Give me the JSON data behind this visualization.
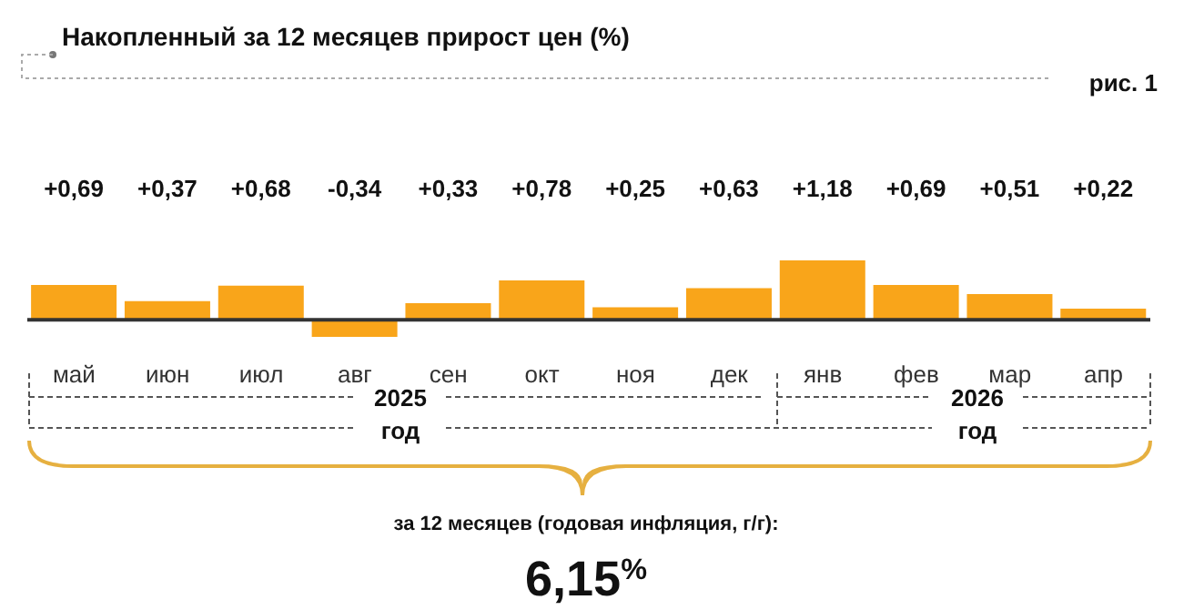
{
  "chart_data": {
    "type": "bar",
    "title": "Накопленный за 12 месяцев прирост цен (%)",
    "categories": [
      "май",
      "июн",
      "июл",
      "авг",
      "сен",
      "окт",
      "ноя",
      "дек",
      "янв",
      "фев",
      "мар",
      "апр"
    ],
    "values": [
      0.69,
      0.37,
      0.68,
      -0.34,
      0.33,
      0.78,
      0.25,
      0.63,
      1.18,
      0.69,
      0.51,
      0.22
    ],
    "value_labels": [
      "+0,69",
      "+0,37",
      "+0,68",
      "-0,34",
      "+0,33",
      "+0,78",
      "+0,25",
      "+0,63",
      "+1,18",
      "+0,69",
      "+0,51",
      "+0,22"
    ],
    "color": "#f9a51a",
    "annotations": [
      "рис. 1",
      "2025",
      "год",
      "2026",
      "год",
      "за 12 месяцев (годовая инфляция, г/г):",
      "6,15$^{%}$"
    ]
  }
}
